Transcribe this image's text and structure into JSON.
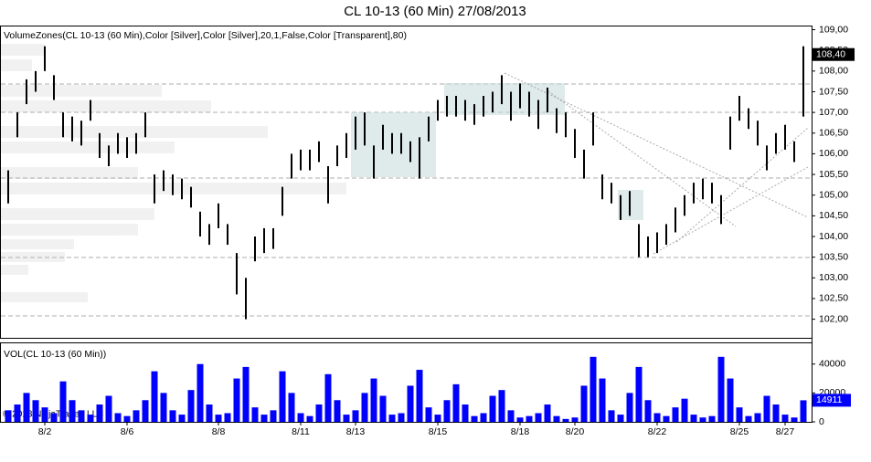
{
  "title": "CL 10-13 (60 Min)  27/08/2013",
  "copyright": "© 2013 NinjaTrader, LLC",
  "chart_data": [
    {
      "type": "hilo",
      "label": "VolumeZones(CL 10-13 (60 Min),Color [Silver],Color [Silver],20,1,False,Color [Transparent],80)",
      "color": "#000000",
      "categories": [
        null,
        null,
        null,
        null,
        "8/2",
        null,
        null,
        null,
        null,
        null,
        null,
        null,
        null,
        "8/6",
        null,
        null,
        null,
        null,
        null,
        null,
        null,
        null,
        null,
        "8/8",
        null,
        null,
        null,
        null,
        null,
        null,
        null,
        null,
        "8/11",
        null,
        null,
        null,
        null,
        null,
        "8/13",
        null,
        null,
        null,
        null,
        null,
        null,
        null,
        null,
        "8/15",
        null,
        null,
        null,
        null,
        null,
        null,
        null,
        null,
        "8/18",
        null,
        null,
        null,
        null,
        null,
        "8/20",
        null,
        null,
        null,
        null,
        null,
        null,
        null,
        null,
        "8/22",
        null,
        null,
        null,
        null,
        null,
        null,
        null,
        null,
        "8/25",
        null,
        null,
        null,
        null,
        "8/27",
        null,
        null
      ],
      "high": [
        105.6,
        107.0,
        107.8,
        108.0,
        108.6,
        107.9,
        107.0,
        106.9,
        106.8,
        107.3,
        106.5,
        106.2,
        106.5,
        106.4,
        106.5,
        107.0,
        105.5,
        105.6,
        105.5,
        105.4,
        105.2,
        104.6,
        104.3,
        104.8,
        104.3,
        103.6,
        103.0,
        104.0,
        104.2,
        104.2,
        105.2,
        106.0,
        106.1,
        106.1,
        106.3,
        105.7,
        106.2,
        106.5,
        106.9,
        107.0,
        106.2,
        106.7,
        106.5,
        106.5,
        106.3,
        106.4,
        106.9,
        107.3,
        107.4,
        107.4,
        107.3,
        107.2,
        107.4,
        107.5,
        107.9,
        107.5,
        107.7,
        107.5,
        107.3,
        107.6,
        107.1,
        107.0,
        106.6,
        106.1,
        107.0,
        105.5,
        105.3,
        105.0,
        105.1,
        104.3,
        104.0,
        104.1,
        104.3,
        104.7,
        105.0,
        105.3,
        105.4,
        105.3,
        105.0,
        106.9,
        107.4,
        107.1,
        106.8,
        106.2,
        106.5,
        106.7,
        106.3,
        108.6
      ],
      "low": [
        104.8,
        106.4,
        107.2,
        107.5,
        108.0,
        107.3,
        106.4,
        106.3,
        106.2,
        106.8,
        105.9,
        105.7,
        106.0,
        105.9,
        106.0,
        106.4,
        104.8,
        105.1,
        105.0,
        104.9,
        104.7,
        104.0,
        103.8,
        104.2,
        103.8,
        102.6,
        102.0,
        103.4,
        103.6,
        103.7,
        104.5,
        105.4,
        105.6,
        105.6,
        105.8,
        104.8,
        105.7,
        105.9,
        106.1,
        106.2,
        105.4,
        106.1,
        106.0,
        106.0,
        105.8,
        105.4,
        106.3,
        106.8,
        106.9,
        106.9,
        106.8,
        106.7,
        106.9,
        107.0,
        107.2,
        106.8,
        107.1,
        106.9,
        106.6,
        107.0,
        106.5,
        106.4,
        105.9,
        105.4,
        106.2,
        104.9,
        104.8,
        104.4,
        104.5,
        103.5,
        103.5,
        103.6,
        103.8,
        104.1,
        104.5,
        104.8,
        104.9,
        104.8,
        104.3,
        106.1,
        106.8,
        106.6,
        106.2,
        105.6,
        106.0,
        106.1,
        105.8,
        106.9
      ],
      "last": {
        "value": 108.4,
        "label": "108,40"
      },
      "ylim": [
        101.55,
        109.1
      ],
      "yticks": [
        {
          "value": 102,
          "label": "102,00"
        },
        {
          "value": 102.5,
          "label": "102,50"
        },
        {
          "value": 103,
          "label": "103,00"
        },
        {
          "value": 103.5,
          "label": "103,50"
        },
        {
          "value": 104,
          "label": "104,00"
        },
        {
          "value": 104.5,
          "label": "104,50"
        },
        {
          "value": 105,
          "label": "105,00"
        },
        {
          "value": 105.5,
          "label": "105,50"
        },
        {
          "value": 106,
          "label": "106,00"
        },
        {
          "value": 106.5,
          "label": "106,50"
        },
        {
          "value": 107,
          "label": "107,00"
        },
        {
          "value": 107.5,
          "label": "107,50"
        },
        {
          "value": 108,
          "label": "108,00"
        },
        {
          "value": 108.5,
          "label": "108,50"
        },
        {
          "value": 109,
          "label": "109,00"
        }
      ]
    },
    {
      "type": "bar",
      "label": "VOL(CL 10-13 (60 Min))",
      "color": "#0000ff",
      "values": [
        8000,
        12000,
        20000,
        15000,
        10000,
        6000,
        28000,
        15000,
        8000,
        5000,
        12000,
        18000,
        6000,
        4000,
        8000,
        15000,
        35000,
        20000,
        8000,
        5000,
        22000,
        40000,
        12000,
        5000,
        6000,
        30000,
        38000,
        10000,
        5000,
        8000,
        35000,
        20000,
        6000,
        4000,
        12000,
        33000,
        15000,
        5000,
        8000,
        20000,
        30000,
        18000,
        5000,
        6000,
        25000,
        36000,
        10000,
        5000,
        15000,
        26000,
        12000,
        4000,
        6000,
        18000,
        22000,
        8000,
        3000,
        4000,
        6000,
        12000,
        4000,
        2000,
        3000,
        25000,
        45000,
        30000,
        8000,
        5000,
        20000,
        38000,
        15000,
        6000,
        4000,
        10000,
        16000,
        5000,
        3000,
        4000,
        45000,
        30000,
        10000,
        4000,
        6000,
        18000,
        12000,
        5000,
        3000,
        14911
      ],
      "ylim": [
        0,
        55000
      ],
      "yticks": [
        0,
        20000,
        40000
      ]
    }
  ]
}
